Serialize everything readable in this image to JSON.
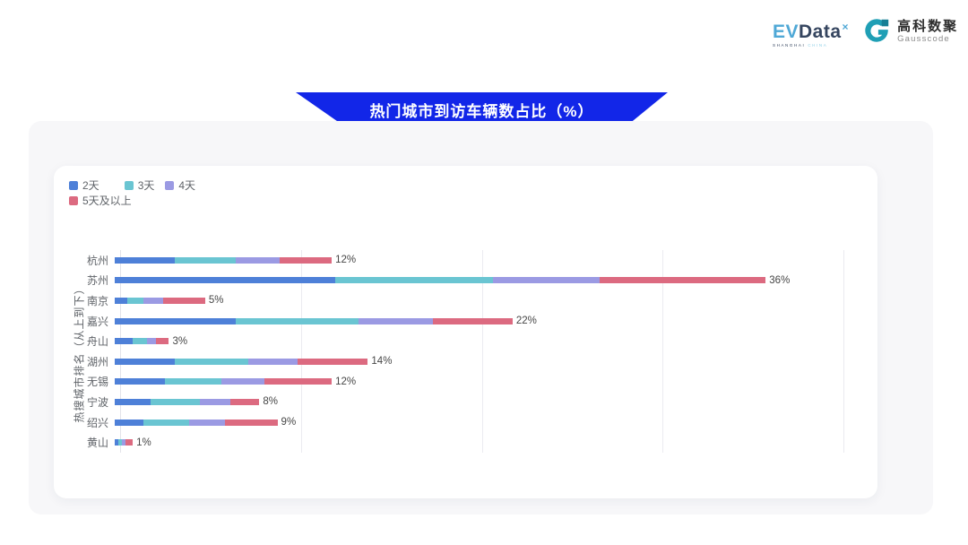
{
  "header": {
    "evdata": {
      "ev": "EV",
      "data": "Data",
      "sup": "×",
      "tagline_left": "SHANGHAI",
      "tagline_right": "CHINA"
    },
    "gausscode": {
      "cn": "高科数聚",
      "en": "Gausscode",
      "mark_color": "#1f9fb5"
    }
  },
  "title_banner": {
    "text": "热门城市到访车辆数占比（%）",
    "bg_color": "#1226e8",
    "text_color": "#ffffff"
  },
  "chart_data": {
    "type": "bar",
    "orientation": "horizontal",
    "stacked": true,
    "title": "热门城市到访车辆数占比（%）",
    "ylabel": "热搜城市排名（从上到下）",
    "xlabel": "",
    "xlim": [
      0,
      40
    ],
    "grid": true,
    "gridlines_percent": [
      10,
      20,
      30,
      40
    ],
    "legend_position": "top-left",
    "categories": [
      "杭州",
      "苏州",
      "南京",
      "嘉兴",
      "舟山",
      "湖州",
      "无锡",
      "宁波",
      "绍兴",
      "黄山"
    ],
    "series": [
      {
        "name": "2天",
        "color": "#4e80d8",
        "values": [
          3.3,
          12.2,
          0.7,
          6.7,
          1.0,
          3.3,
          2.8,
          2.0,
          1.6,
          0.2
        ]
      },
      {
        "name": "3天",
        "color": "#6ac5d2",
        "values": [
          3.4,
          8.7,
          0.9,
          6.8,
          0.8,
          4.1,
          3.1,
          2.7,
          2.5,
          0.2
        ]
      },
      {
        "name": "4天",
        "color": "#9b9ae3",
        "values": [
          2.4,
          5.9,
          1.1,
          4.1,
          0.5,
          2.7,
          2.4,
          1.7,
          2.0,
          0.2
        ]
      },
      {
        "name": "5天及以上",
        "color": "#dc6a80",
        "values": [
          2.9,
          9.2,
          2.3,
          4.4,
          0.7,
          3.9,
          3.7,
          1.6,
          2.9,
          0.4
        ]
      }
    ],
    "totals": [
      12,
      36,
      5,
      22,
      3,
      14,
      12,
      8,
      9,
      1
    ],
    "totals_label": [
      "12%",
      "36%",
      "5%",
      "22%",
      "3%",
      "14%",
      "12%",
      "8%",
      "9%",
      "1%"
    ]
  }
}
